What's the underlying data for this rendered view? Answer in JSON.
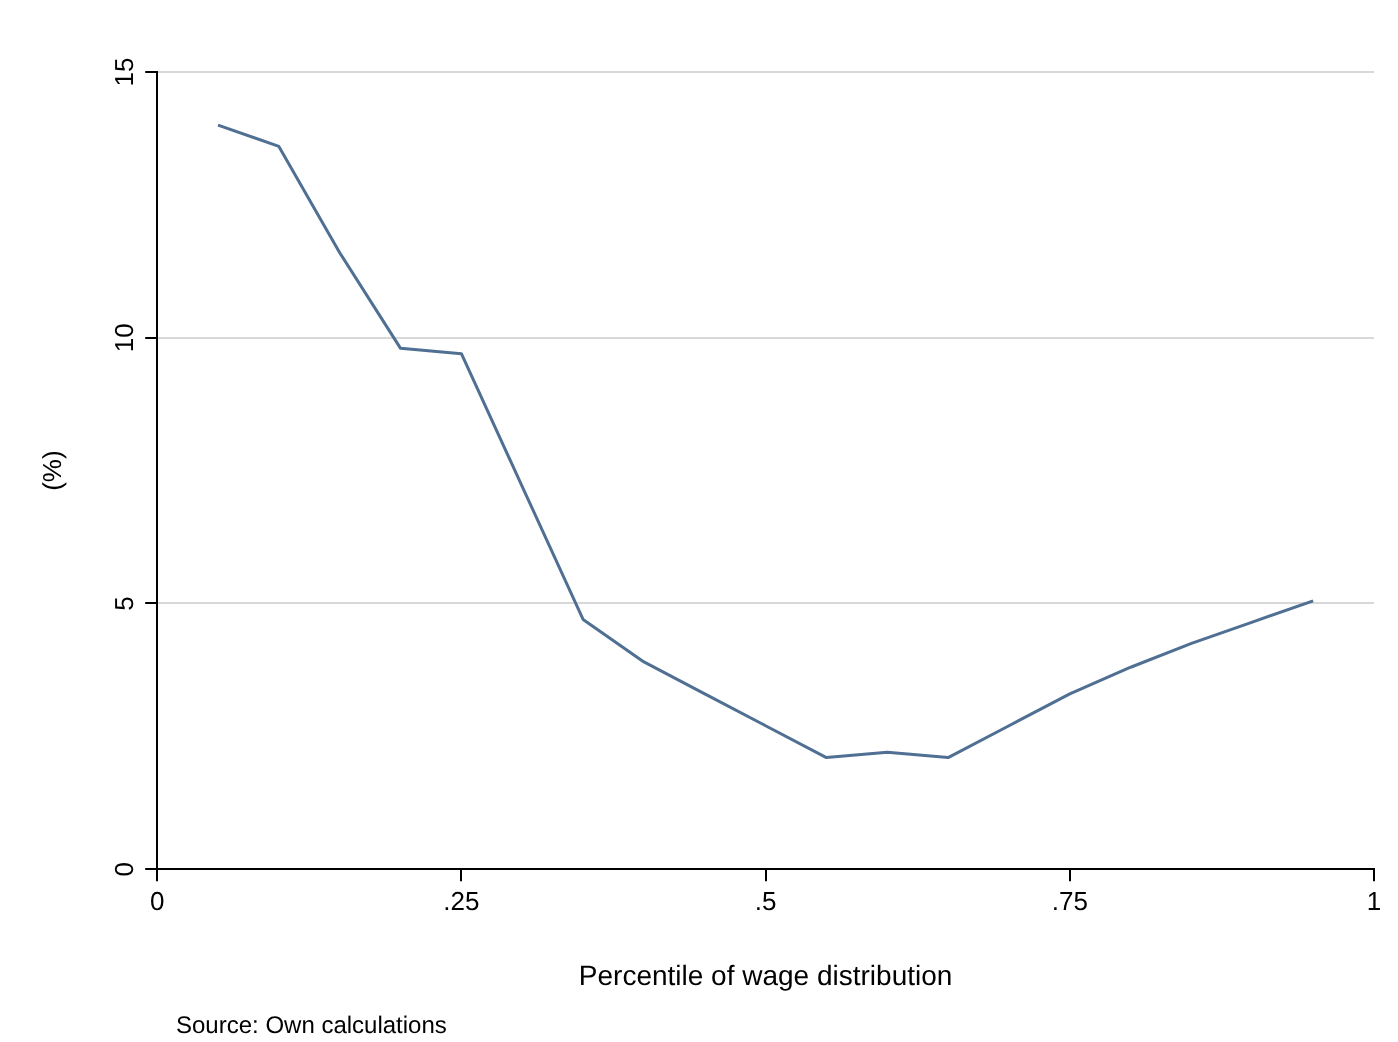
{
  "chart_data": {
    "type": "line",
    "xlabel": "Percentile of wage distribution",
    "ylabel": "(%)",
    "x": [
      0.05,
      0.1,
      0.15,
      0.2,
      0.25,
      0.3,
      0.35,
      0.4,
      0.45,
      0.5,
      0.55,
      0.6,
      0.65,
      0.7,
      0.75,
      0.8,
      0.85,
      0.9,
      0.95
    ],
    "series": [
      {
        "color": "#4f6f93",
        "values": [
          14.0,
          13.6,
          11.6,
          9.8,
          9.7,
          7.2,
          4.7,
          3.9,
          3.3,
          2.7,
          2.1,
          2.2,
          2.1,
          2.7,
          3.3,
          3.8,
          4.25,
          4.65,
          5.05
        ]
      }
    ],
    "xlim": [
      0,
      1
    ],
    "xticks": [
      {
        "value": 0,
        "label": "0"
      },
      {
        "value": 0.25,
        "label": ".25"
      },
      {
        "value": 0.5,
        "label": ".5"
      },
      {
        "value": 0.75,
        "label": ".75"
      },
      {
        "value": 1,
        "label": "1"
      }
    ],
    "ylim": [
      0,
      15
    ],
    "yticks": [
      0,
      5,
      10,
      15
    ],
    "grid": "y",
    "legend": false,
    "marker": "none",
    "line_style": "solid",
    "annotations": [
      "Source: Own calculations"
    ]
  }
}
